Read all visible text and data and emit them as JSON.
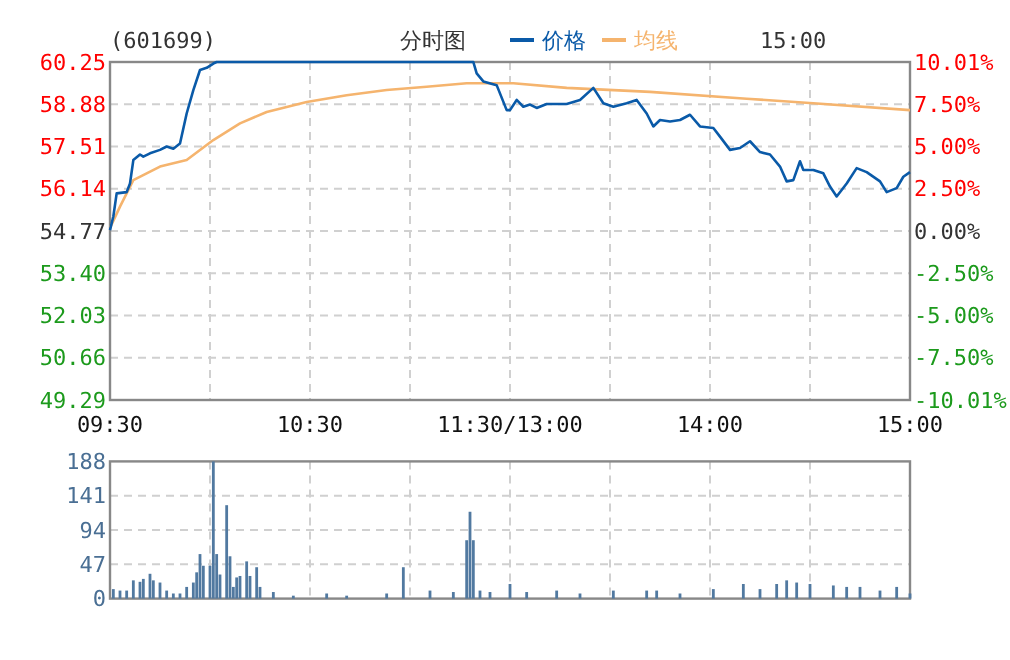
{
  "chart_data": [
    {
      "type": "line",
      "title": "(601699)",
      "subtitle": "分时图",
      "annotations": [
        "15:00"
      ],
      "legend": "top",
      "grid": true,
      "categories": [
        "09:30",
        null,
        null,
        null,
        null,
        null,
        null,
        null,
        null,
        null,
        null,
        null,
        null,
        null,
        null,
        null,
        null,
        null,
        null,
        null,
        null,
        null,
        null,
        null,
        null,
        null,
        null,
        null,
        null,
        null,
        null,
        null,
        null,
        null,
        null,
        null,
        null,
        null,
        null,
        null,
        null,
        null,
        null,
        null,
        null,
        null,
        null,
        null,
        null,
        null,
        null,
        null,
        null,
        null,
        null,
        null,
        null,
        null,
        null,
        null,
        "10:30",
        null,
        null,
        null,
        null,
        null,
        null,
        null,
        null,
        null,
        null,
        null,
        null,
        null,
        null,
        null,
        null,
        null,
        null,
        null,
        null,
        null,
        null,
        null,
        null,
        null,
        null,
        null,
        null,
        null,
        null,
        null,
        null,
        null,
        null,
        null,
        null,
        null,
        null,
        null,
        null,
        null,
        null,
        null,
        null,
        null,
        null,
        null,
        null,
        null,
        null,
        null,
        null,
        null,
        null,
        null,
        null,
        null,
        null,
        null,
        "11:30/13:00",
        null,
        null,
        null,
        null,
        null,
        null,
        null,
        null,
        null,
        null,
        null,
        null,
        null,
        null,
        null,
        null,
        null,
        null,
        null,
        null,
        null,
        null,
        null,
        null,
        null,
        null,
        null,
        null,
        null,
        null,
        null,
        null,
        null,
        null,
        null,
        null,
        null,
        null,
        null,
        null,
        null,
        null,
        null,
        null,
        null,
        null,
        null,
        null,
        null,
        null,
        null,
        null,
        null,
        null,
        null,
        null,
        null,
        null,
        null,
        "14:00",
        null,
        null,
        null,
        null,
        null,
        null,
        null,
        null,
        null,
        null,
        null,
        null,
        null,
        null,
        null,
        null,
        null,
        null,
        null,
        null,
        null,
        null,
        null,
        null,
        null,
        null,
        null,
        null,
        null,
        null,
        null,
        null,
        null,
        null,
        null,
        null,
        null,
        null,
        null,
        null,
        null,
        null,
        null,
        null,
        null,
        null,
        null,
        null,
        null,
        null,
        null,
        null,
        null,
        null,
        null,
        null,
        null,
        null,
        null,
        "15:00"
      ],
      "ylim": [
        49.29,
        60.25
      ],
      "yticks": [
        {
          "value": 49.29,
          "label": "49.29"
        },
        {
          "value": 50.66,
          "label": "50.66"
        },
        {
          "value": 52.03,
          "label": "52.03"
        },
        {
          "value": 53.4,
          "label": "53.40"
        },
        {
          "value": 54.77,
          "label": "54.77"
        },
        {
          "value": 56.14,
          "label": "56.14"
        },
        {
          "value": 57.51,
          "label": "57.51"
        },
        {
          "value": 58.88,
          "label": "58.88"
        },
        {
          "value": 60.25,
          "label": "60.25"
        }
      ],
      "y2lim": [
        -10.01,
        10.01
      ],
      "y2ticks": [
        {
          "value": -10.01,
          "label": "-10.01%"
        },
        {
          "value": -7.5,
          "label": "-7.50%"
        },
        {
          "value": -5,
          "label": "-5.00%"
        },
        {
          "value": -2.5,
          "label": "-2.50%"
        },
        {
          "value": 0,
          "label": "0.00%"
        },
        {
          "value": 2.5,
          "label": "2.50%"
        },
        {
          "value": 5,
          "label": "5.00%"
        },
        {
          "value": 7.5,
          "label": "7.50%"
        },
        {
          "value": 10.01,
          "label": "10.01%"
        }
      ],
      "series": [
        {
          "name": "价格",
          "color": "#0a5aa8",
          "values": [
            54.8,
            55.24,
            55.99,
            null,
            null,
            56.03,
            56.31,
            57.07,
            null,
            57.25,
            57.18,
            null,
            57.29,
            null,
            null,
            57.4,
            null,
            57.51,
            null,
            57.44,
            null,
            57.61,
            null,
            58.58,
            null,
            59.34,
            null,
            59.99,
            null,
            60.06,
            null,
            60.2,
            60.25,
            null,
            null,
            null,
            null,
            null,
            null,
            null,
            null,
            null,
            null,
            null,
            null,
            null,
            null,
            null,
            null,
            null,
            null,
            null,
            null,
            null,
            null,
            null,
            null,
            null,
            null,
            null,
            null,
            null,
            null,
            null,
            null,
            null,
            null,
            null,
            null,
            null,
            null,
            null,
            null,
            null,
            null,
            null,
            null,
            null,
            null,
            null,
            null,
            null,
            null,
            null,
            null,
            null,
            null,
            null,
            null,
            null,
            null,
            null,
            null,
            null,
            null,
            null,
            null,
            null,
            null,
            null,
            null,
            null,
            null,
            null,
            null,
            null,
            null,
            null,
            null,
            60.25,
            59.88,
            null,
            59.62,
            null,
            null,
            null,
            59.5,
            null,
            null,
            58.69,
            58.69,
            null,
            59.02,
            null,
            58.8,
            null,
            58.87,
            null,
            58.76,
            null,
            null,
            58.89,
            null,
            null,
            null,
            null,
            null,
            58.89,
            null,
            null,
            null,
            59.02,
            null,
            null,
            null,
            59.41,
            null,
            null,
            58.91,
            null,
            null,
            58.8,
            null,
            null,
            null,
            58.91,
            null,
            null,
            59.02,
            null,
            null,
            58.58,
            null,
            58.16,
            null,
            58.37,
            null,
            null,
            58.32,
            null,
            null,
            58.37,
            null,
            null,
            58.54,
            null,
            null,
            58.16,
            null,
            null,
            null,
            58.11,
            null,
            57.83,
            null,
            null,
            57.4,
            null,
            null,
            57.46,
            null,
            null,
            57.68,
            null,
            null,
            57.33,
            null,
            null,
            57.25,
            null,
            null,
            56.86,
            null,
            56.38,
            null,
            56.42,
            null,
            57.03,
            56.75,
            null,
            null,
            56.75,
            null,
            null,
            56.64,
            null,
            56.21,
            null,
            55.89,
            null,
            null,
            56.31,
            null,
            null,
            56.81,
            null,
            null,
            56.68,
            null,
            null,
            null,
            56.38,
            null,
            56.03,
            null,
            null,
            56.16,
            null,
            56.53,
            null,
            56.68
          ]
        },
        {
          "name": "均线",
          "color": "#f5b46e",
          "values": [
            54.87,
            null,
            null,
            55.56,
            null,
            null,
            null,
            56.42,
            null,
            null,
            null,
            56.64,
            null,
            null,
            null,
            56.86,
            null,
            null,
            null,
            null,
            null,
            null,
            null,
            57.07,
            null,
            null,
            null,
            null,
            null,
            null,
            null,
            57.72,
            null,
            null,
            null,
            null,
            null,
            null,
            null,
            58.26,
            null,
            null,
            null,
            null,
            null,
            null,
            null,
            58.63,
            null,
            null,
            null,
            null,
            null,
            null,
            null,
            null,
            null,
            null,
            null,
            58.95,
            null,
            null,
            null,
            null,
            null,
            null,
            null,
            null,
            null,
            null,
            null,
            59.17,
            null,
            null,
            null,
            null,
            null,
            null,
            null,
            null,
            null,
            null,
            null,
            59.34,
            null,
            null,
            null,
            null,
            null,
            null,
            null,
            null,
            null,
            null,
            null,
            59.45,
            null,
            null,
            null,
            null,
            null,
            null,
            null,
            null,
            null,
            null,
            null,
            59.56,
            null,
            null,
            null,
            null,
            null,
            null,
            null,
            null,
            null,
            null,
            null,
            null,
            null,
            59.56,
            null,
            null,
            null,
            null,
            null,
            null,
            null,
            null,
            null,
            null,
            null,
            null,
            null,
            null,
            null,
            59.41,
            null,
            null,
            null,
            null,
            null,
            null,
            null,
            null,
            null,
            null,
            null,
            null,
            null,
            null,
            null,
            null,
            null,
            null,
            null,
            null,
            null,
            null,
            null,
            null,
            59.28,
            null,
            null,
            null,
            null,
            null,
            null,
            null,
            null,
            null,
            null,
            null,
            null,
            null,
            null,
            null,
            null,
            null,
            null,
            null,
            null,
            null,
            null,
            null,
            null,
            null,
            null,
            null,
            null,
            59.06,
            null,
            null,
            null,
            null,
            null,
            null,
            null,
            null,
            null,
            null,
            null,
            null,
            null,
            null,
            null,
            null,
            null,
            null,
            null,
            58.91,
            null,
            null,
            null,
            null,
            null,
            null,
            null,
            null,
            null,
            null,
            null,
            null,
            null,
            null,
            null,
            null,
            null,
            null,
            null,
            null,
            null,
            null,
            null,
            null,
            null,
            null,
            null,
            null,
            58.69
          ]
        }
      ]
    },
    {
      "type": "bar",
      "grid": true,
      "tick_labels": "y",
      "categories": [
        null,
        null,
        null,
        null,
        null,
        null,
        null,
        null,
        null,
        null,
        null,
        null,
        null,
        null,
        null,
        null,
        null,
        null,
        null,
        null,
        null,
        null,
        null,
        null,
        null,
        null,
        null,
        null,
        null,
        null,
        null,
        null,
        null,
        null,
        null,
        null,
        null,
        null,
        null,
        null,
        null,
        null,
        null,
        null,
        null,
        null,
        null,
        null,
        null,
        null,
        null,
        null,
        null,
        null,
        null,
        null,
        null,
        null,
        null,
        null,
        null,
        null,
        null,
        null,
        null,
        null,
        null,
        null,
        null,
        null,
        null,
        null,
        null,
        null,
        null,
        null,
        null,
        null,
        null,
        null,
        null,
        null,
        null,
        null,
        null,
        null,
        null,
        null,
        null,
        null,
        null,
        null,
        null,
        null,
        null,
        null,
        null,
        null,
        null,
        null,
        null,
        null,
        null,
        null,
        null,
        null,
        null,
        null,
        null,
        null,
        null,
        null,
        null,
        null,
        null,
        null,
        null,
        null,
        null,
        null,
        null,
        null,
        null,
        null,
        null,
        null,
        null,
        null,
        null,
        null,
        null,
        null,
        null,
        null,
        null,
        null,
        null,
        null,
        null,
        null,
        null,
        null,
        null,
        null,
        null,
        null,
        null,
        null,
        null,
        null,
        null,
        null,
        null,
        null,
        null,
        null,
        null,
        null,
        null,
        null,
        null,
        null,
        null,
        null,
        null,
        null,
        null,
        null,
        null,
        null,
        null,
        null,
        null,
        null,
        null,
        null,
        null,
        null,
        null,
        null,
        null,
        null,
        null,
        null,
        null,
        null,
        null,
        null,
        null,
        null,
        null,
        null,
        null,
        null,
        null,
        null,
        null,
        null,
        null,
        null,
        null,
        null,
        null,
        null,
        null,
        null,
        null,
        null,
        null,
        null,
        null,
        null,
        null,
        null,
        null,
        null,
        null,
        null,
        null,
        null,
        null,
        null,
        null,
        null,
        null,
        null,
        null,
        null,
        null,
        null,
        null,
        null,
        null,
        null,
        null,
        null,
        null,
        null,
        null,
        null,
        null
      ],
      "ylim": [
        0,
        188
      ],
      "yticks": [
        0,
        47,
        94,
        141,
        188
      ],
      "values": [
        null,
        13,
        null,
        11,
        null,
        11,
        null,
        25,
        null,
        23,
        27,
        null,
        34,
        25,
        null,
        22,
        null,
        11,
        null,
        7,
        null,
        7,
        null,
        16,
        null,
        22,
        36,
        61,
        45,
        null,
        45,
        188,
        61,
        33,
        null,
        128,
        58,
        16,
        29,
        31,
        null,
        51,
        31,
        null,
        43,
        16,
        null,
        null,
        null,
        9,
        null,
        null,
        null,
        null,
        null,
        4,
        null,
        null,
        null,
        null,
        null,
        null,
        null,
        null,
        null,
        7,
        null,
        null,
        null,
        null,
        null,
        4,
        null,
        null,
        null,
        null,
        null,
        null,
        null,
        null,
        null,
        null,
        null,
        7,
        null,
        null,
        null,
        null,
        43,
        null,
        null,
        null,
        null,
        null,
        null,
        null,
        11,
        null,
        null,
        null,
        null,
        null,
        null,
        9,
        null,
        null,
        null,
        80,
        119,
        80,
        null,
        11,
        null,
        null,
        9,
        null,
        null,
        null,
        null,
        null,
        20,
        null,
        null,
        null,
        null,
        9,
        null,
        null,
        null,
        null,
        null,
        null,
        null,
        null,
        11,
        null,
        null,
        null,
        null,
        null,
        null,
        7,
        null,
        null,
        null,
        null,
        null,
        null,
        null,
        null,
        null,
        11,
        null,
        null,
        null,
        null,
        null,
        null,
        null,
        null,
        null,
        11,
        null,
        null,
        11,
        null,
        null,
        null,
        null,
        null,
        null,
        7,
        null,
        null,
        null,
        null,
        null,
        null,
        null,
        null,
        null,
        13,
        null,
        null,
        null,
        null,
        null,
        null,
        null,
        null,
        20,
        null,
        null,
        null,
        null,
        13,
        null,
        null,
        null,
        null,
        20,
        null,
        null,
        25,
        null,
        null,
        22,
        null,
        null,
        null,
        20,
        null,
        null,
        null,
        null,
        null,
        null,
        18,
        null,
        null,
        null,
        16,
        null,
        null,
        null,
        16,
        null,
        null,
        null,
        null,
        null,
        11,
        null,
        null,
        null,
        null,
        16,
        null,
        null,
        null,
        7
      ],
      "color": "#5179a0"
    }
  ]
}
